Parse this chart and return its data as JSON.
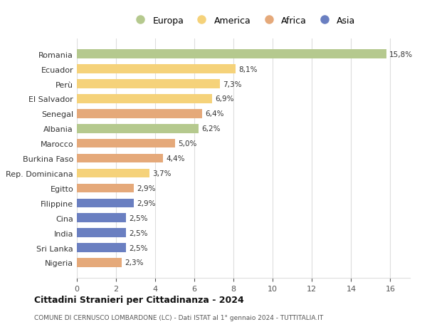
{
  "countries": [
    "Romania",
    "Ecuador",
    "Perù",
    "El Salvador",
    "Senegal",
    "Albania",
    "Marocco",
    "Burkina Faso",
    "Rep. Dominicana",
    "Egitto",
    "Filippine",
    "Cina",
    "India",
    "Sri Lanka",
    "Nigeria"
  ],
  "values": [
    15.8,
    8.1,
    7.3,
    6.9,
    6.4,
    6.2,
    5.0,
    4.4,
    3.7,
    2.9,
    2.9,
    2.5,
    2.5,
    2.5,
    2.3
  ],
  "labels": [
    "15,8%",
    "8,1%",
    "7,3%",
    "6,9%",
    "6,4%",
    "6,2%",
    "5,0%",
    "4,4%",
    "3,7%",
    "2,9%",
    "2,9%",
    "2,5%",
    "2,5%",
    "2,5%",
    "2,3%"
  ],
  "continents": [
    "Europa",
    "America",
    "America",
    "America",
    "Africa",
    "Europa",
    "Africa",
    "Africa",
    "America",
    "Africa",
    "Asia",
    "Asia",
    "Asia",
    "Asia",
    "Africa"
  ],
  "colors": {
    "Europa": "#b5c98e",
    "America": "#f5d27a",
    "Africa": "#e5a97a",
    "Asia": "#6a7fc1"
  },
  "legend_order": [
    "Europa",
    "America",
    "Africa",
    "Asia"
  ],
  "title": "Cittadini Stranieri per Cittadinanza - 2024",
  "subtitle": "COMUNE DI CERNUSCO LOMBARDONE (LC) - Dati ISTAT al 1° gennaio 2024 - TUTTITALIA.IT",
  "xlim": [
    0,
    17
  ],
  "xticks": [
    0,
    2,
    4,
    6,
    8,
    10,
    12,
    14,
    16
  ],
  "background_color": "#ffffff",
  "grid_color": "#dddddd",
  "bar_height": 0.6
}
